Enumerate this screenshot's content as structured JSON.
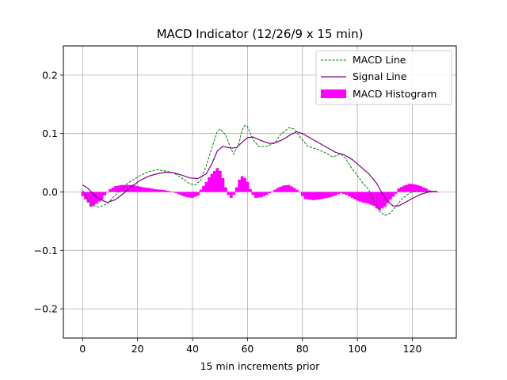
{
  "chart_data": {
    "type": "line",
    "title": "MACD Indicator (12/26/9 x 15 min)",
    "xlabel": "15 min increments prior",
    "ylabel": "",
    "xlim": [
      -7,
      136
    ],
    "ylim": [
      -0.25,
      0.25
    ],
    "xticks": [
      0,
      20,
      40,
      60,
      80,
      100,
      120
    ],
    "yticks": [
      -0.2,
      -0.1,
      0.0,
      0.1,
      0.2
    ],
    "ytick_labels": [
      "−0.2",
      "−0.1",
      "0.0",
      "0.1",
      "0.2"
    ],
    "grid": true,
    "legend_position": "top-right",
    "colors": {
      "macd": "#008000",
      "signal": "#800080",
      "histogram": "#ff00ff",
      "grid": "#b0b0b0"
    },
    "series": [
      {
        "name": "MACD Line",
        "style": "dashed",
        "points": [
          [
            0,
            0.003
          ],
          [
            3,
            -0.022
          ],
          [
            6,
            -0.026
          ],
          [
            9,
            -0.02
          ],
          [
            12,
            -0.005
          ],
          [
            15,
            0.01
          ],
          [
            18,
            0.02
          ],
          [
            21,
            0.028
          ],
          [
            24,
            0.035
          ],
          [
            27,
            0.038
          ],
          [
            30,
            0.036
          ],
          [
            33,
            0.033
          ],
          [
            36,
            0.024
          ],
          [
            39,
            0.014
          ],
          [
            41,
            0.012
          ],
          [
            43,
            0.02
          ],
          [
            45,
            0.045
          ],
          [
            47,
            0.075
          ],
          [
            49,
            0.103
          ],
          [
            50,
            0.108
          ],
          [
            52,
            0.098
          ],
          [
            54,
            0.074
          ],
          [
            55,
            0.065
          ],
          [
            57,
            0.085
          ],
          [
            58,
            0.105
          ],
          [
            59,
            0.114
          ],
          [
            60,
            0.112
          ],
          [
            62,
            0.09
          ],
          [
            64,
            0.078
          ],
          [
            67,
            0.078
          ],
          [
            70,
            0.084
          ],
          [
            72,
            0.098
          ],
          [
            75,
            0.11
          ],
          [
            77,
            0.108
          ],
          [
            79,
            0.095
          ],
          [
            82,
            0.078
          ],
          [
            85,
            0.074
          ],
          [
            88,
            0.068
          ],
          [
            91,
            0.06
          ],
          [
            94,
            0.065
          ],
          [
            96,
            0.055
          ],
          [
            98,
            0.04
          ],
          [
            100,
            0.028
          ],
          [
            102,
            0.015
          ],
          [
            104,
            0.005
          ],
          [
            106,
            -0.015
          ],
          [
            108,
            -0.033
          ],
          [
            110,
            -0.04
          ],
          [
            112,
            -0.036
          ],
          [
            114,
            -0.025
          ],
          [
            116,
            -0.013
          ],
          [
            118,
            -0.005
          ],
          [
            120,
            0.0
          ],
          [
            123,
            0.001
          ],
          [
            126,
            0.001
          ],
          [
            129,
            0.001
          ]
        ]
      },
      {
        "name": "Signal Line",
        "style": "solid",
        "points": [
          [
            0,
            0.012
          ],
          [
            2,
            0.006
          ],
          [
            4,
            -0.004
          ],
          [
            6,
            -0.012
          ],
          [
            9,
            -0.018
          ],
          [
            12,
            -0.013
          ],
          [
            15,
            -0.002
          ],
          [
            18,
            0.01
          ],
          [
            21,
            0.02
          ],
          [
            24,
            0.027
          ],
          [
            27,
            0.031
          ],
          [
            30,
            0.034
          ],
          [
            33,
            0.033
          ],
          [
            36,
            0.029
          ],
          [
            39,
            0.024
          ],
          [
            42,
            0.023
          ],
          [
            45,
            0.031
          ],
          [
            47,
            0.048
          ],
          [
            49,
            0.07
          ],
          [
            51,
            0.078
          ],
          [
            54,
            0.075
          ],
          [
            56,
            0.076
          ],
          [
            58,
            0.085
          ],
          [
            60,
            0.093
          ],
          [
            62,
            0.094
          ],
          [
            65,
            0.088
          ],
          [
            68,
            0.083
          ],
          [
            70,
            0.084
          ],
          [
            73,
            0.09
          ],
          [
            76,
            0.099
          ],
          [
            78,
            0.103
          ],
          [
            80,
            0.1
          ],
          [
            83,
            0.092
          ],
          [
            86,
            0.084
          ],
          [
            89,
            0.076
          ],
          [
            92,
            0.068
          ],
          [
            95,
            0.064
          ],
          [
            98,
            0.056
          ],
          [
            101,
            0.044
          ],
          [
            104,
            0.032
          ],
          [
            107,
            0.015
          ],
          [
            109,
            -0.002
          ],
          [
            111,
            -0.016
          ],
          [
            113,
            -0.024
          ],
          [
            115,
            -0.024
          ],
          [
            117,
            -0.019
          ],
          [
            120,
            -0.011
          ],
          [
            123,
            -0.004
          ],
          [
            126,
            0.0
          ],
          [
            129,
            0.001
          ]
        ]
      },
      {
        "name": "MACD Histogram",
        "style": "bar",
        "points": [
          [
            0,
            -0.007
          ],
          [
            2,
            -0.018
          ],
          [
            3,
            -0.025
          ],
          [
            5,
            -0.02
          ],
          [
            7,
            -0.013
          ],
          [
            8,
            -0.006
          ],
          [
            10,
            0.005
          ],
          [
            12,
            0.01
          ],
          [
            14,
            0.012
          ],
          [
            16,
            0.012
          ],
          [
            18,
            0.012
          ],
          [
            20,
            0.01
          ],
          [
            22,
            0.008
          ],
          [
            24,
            0.007
          ],
          [
            26,
            0.005
          ],
          [
            28,
            0.004
          ],
          [
            30,
            0.003
          ],
          [
            32,
            0.001
          ],
          [
            34,
            -0.002
          ],
          [
            36,
            -0.006
          ],
          [
            38,
            -0.009
          ],
          [
            40,
            -0.01
          ],
          [
            42,
            -0.006
          ],
          [
            43,
            0.004
          ],
          [
            45,
            0.017
          ],
          [
            46,
            0.025
          ],
          [
            47,
            0.031
          ],
          [
            48,
            0.036
          ],
          [
            49,
            0.041
          ],
          [
            50,
            0.036
          ],
          [
            51,
            0.024
          ],
          [
            52,
            0.008
          ],
          [
            53,
            -0.005
          ],
          [
            54,
            -0.01
          ],
          [
            55,
            -0.005
          ],
          [
            56,
            0.008
          ],
          [
            57,
            0.021
          ],
          [
            58,
            0.027
          ],
          [
            59,
            0.024
          ],
          [
            60,
            0.017
          ],
          [
            61,
            0.005
          ],
          [
            62,
            -0.005
          ],
          [
            63,
            -0.01
          ],
          [
            65,
            -0.009
          ],
          [
            67,
            -0.005
          ],
          [
            69,
            0.001
          ],
          [
            71,
            0.007
          ],
          [
            73,
            0.011
          ],
          [
            75,
            0.012
          ],
          [
            77,
            0.007
          ],
          [
            79,
            0.0
          ],
          [
            80,
            -0.007
          ],
          [
            81,
            -0.012
          ],
          [
            84,
            -0.014
          ],
          [
            87,
            -0.012
          ],
          [
            90,
            -0.009
          ],
          [
            92,
            -0.006
          ],
          [
            94,
            -0.002
          ],
          [
            96,
            -0.005
          ],
          [
            98,
            -0.01
          ],
          [
            100,
            -0.015
          ],
          [
            102,
            -0.018
          ],
          [
            104,
            -0.02
          ],
          [
            106,
            -0.024
          ],
          [
            107,
            -0.028
          ],
          [
            108,
            -0.031
          ],
          [
            110,
            -0.025
          ],
          [
            112,
            -0.013
          ],
          [
            114,
            -0.003
          ],
          [
            115,
            0.006
          ],
          [
            117,
            0.011
          ],
          [
            119,
            0.014
          ],
          [
            121,
            0.013
          ],
          [
            123,
            0.01
          ],
          [
            125,
            0.006
          ],
          [
            126,
            0.003
          ],
          [
            128,
            0.001
          ],
          [
            129,
            0.0
          ]
        ]
      }
    ]
  }
}
